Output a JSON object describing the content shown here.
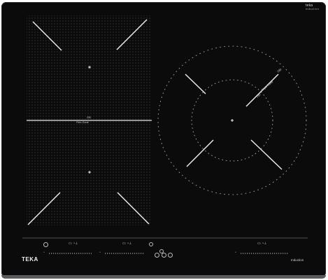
{
  "brand": {
    "top_name": "teka",
    "top_subtitle": "induction",
    "bottom_name": "TEKA",
    "bottom_type": "Induction"
  },
  "zones": {
    "flex_zone_label": "Flex Zone",
    "flex_zone_top": "230",
    "ring_inner": "190",
    "ring_outer": "280",
    "ring_mid": "Triple Zone"
  },
  "icons": {
    "power": "power-icon",
    "lock": "lock-icon",
    "timer": "timer-icon",
    "boost": "boost-icon",
    "plus": "plus-icon",
    "minus": "minus-icon"
  },
  "colors": {
    "glass": "#0b0b0c",
    "lines": "#e8e8e8",
    "dots": "#7a7a7a"
  }
}
